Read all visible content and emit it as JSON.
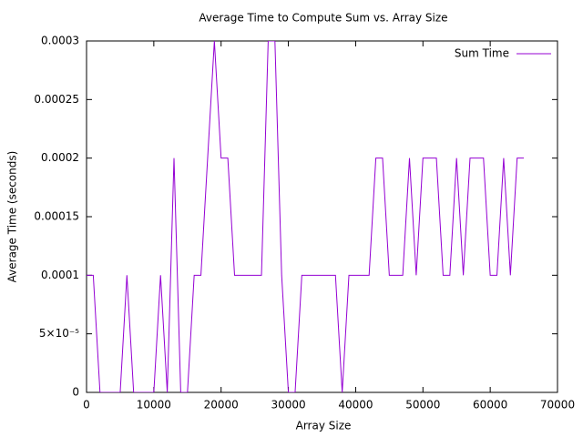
{
  "chart_data": {
    "type": "line",
    "title": "Average Time to Compute Sum vs. Array Size",
    "xlabel": "Array Size",
    "ylabel": "Average Time (seconds)",
    "x": [
      0,
      1000,
      2000,
      3000,
      4000,
      5000,
      6000,
      7000,
      8000,
      9000,
      10000,
      11000,
      12000,
      13000,
      14000,
      15000,
      16000,
      17000,
      18000,
      19000,
      20000,
      21000,
      22000,
      23000,
      24000,
      25000,
      26000,
      27000,
      28000,
      29000,
      30000,
      31000,
      32000,
      33000,
      34000,
      35000,
      36000,
      37000,
      38000,
      39000,
      40000,
      41000,
      42000,
      43000,
      44000,
      45000,
      46000,
      47000,
      48000,
      49000,
      50000,
      51000,
      52000,
      53000,
      54000,
      55000,
      56000,
      57000,
      58000,
      59000,
      60000,
      61000,
      62000,
      63000,
      64000,
      65000
    ],
    "series": [
      {
        "name": "Sum Time",
        "color": "#9400d3",
        "values": [
          0.0001,
          0.0001,
          0,
          0,
          0,
          0,
          0.0001,
          0,
          0,
          0,
          0,
          0.0001,
          0,
          0.0002,
          0,
          0,
          0.0001,
          0.0001,
          0.0002,
          0.0003,
          0.0002,
          0.0002,
          0.0001,
          0.0001,
          0.0001,
          0.0001,
          0.0001,
          0.0003,
          0.0003,
          0.0001,
          0,
          0,
          0.0001,
          0.0001,
          0.0001,
          0.0001,
          0.0001,
          0.0001,
          0,
          0.0001,
          0.0001,
          0.0001,
          0.0001,
          0.0002,
          0.0002,
          0.0001,
          0.0001,
          0.0001,
          0.0002,
          0.0001,
          0.0002,
          0.0002,
          0.0002,
          0.0001,
          0.0001,
          0.0002,
          0.0001,
          0.0002,
          0.0002,
          0.0002,
          0.0001,
          0.0001,
          0.0002,
          0.0001,
          0.0002,
          0.0002
        ]
      }
    ],
    "xlim": [
      0,
      70000
    ],
    "xticks": [
      0,
      10000,
      20000,
      30000,
      40000,
      50000,
      60000,
      70000
    ],
    "ylim": [
      0,
      0.0003
    ],
    "yticks": [
      0,
      {
        "value": 5e-05,
        "label": "5×10⁻⁵"
      },
      0.0001,
      0.00015,
      0.0002,
      0.00025,
      0.0003
    ],
    "grid": false,
    "legend": "top-right"
  }
}
